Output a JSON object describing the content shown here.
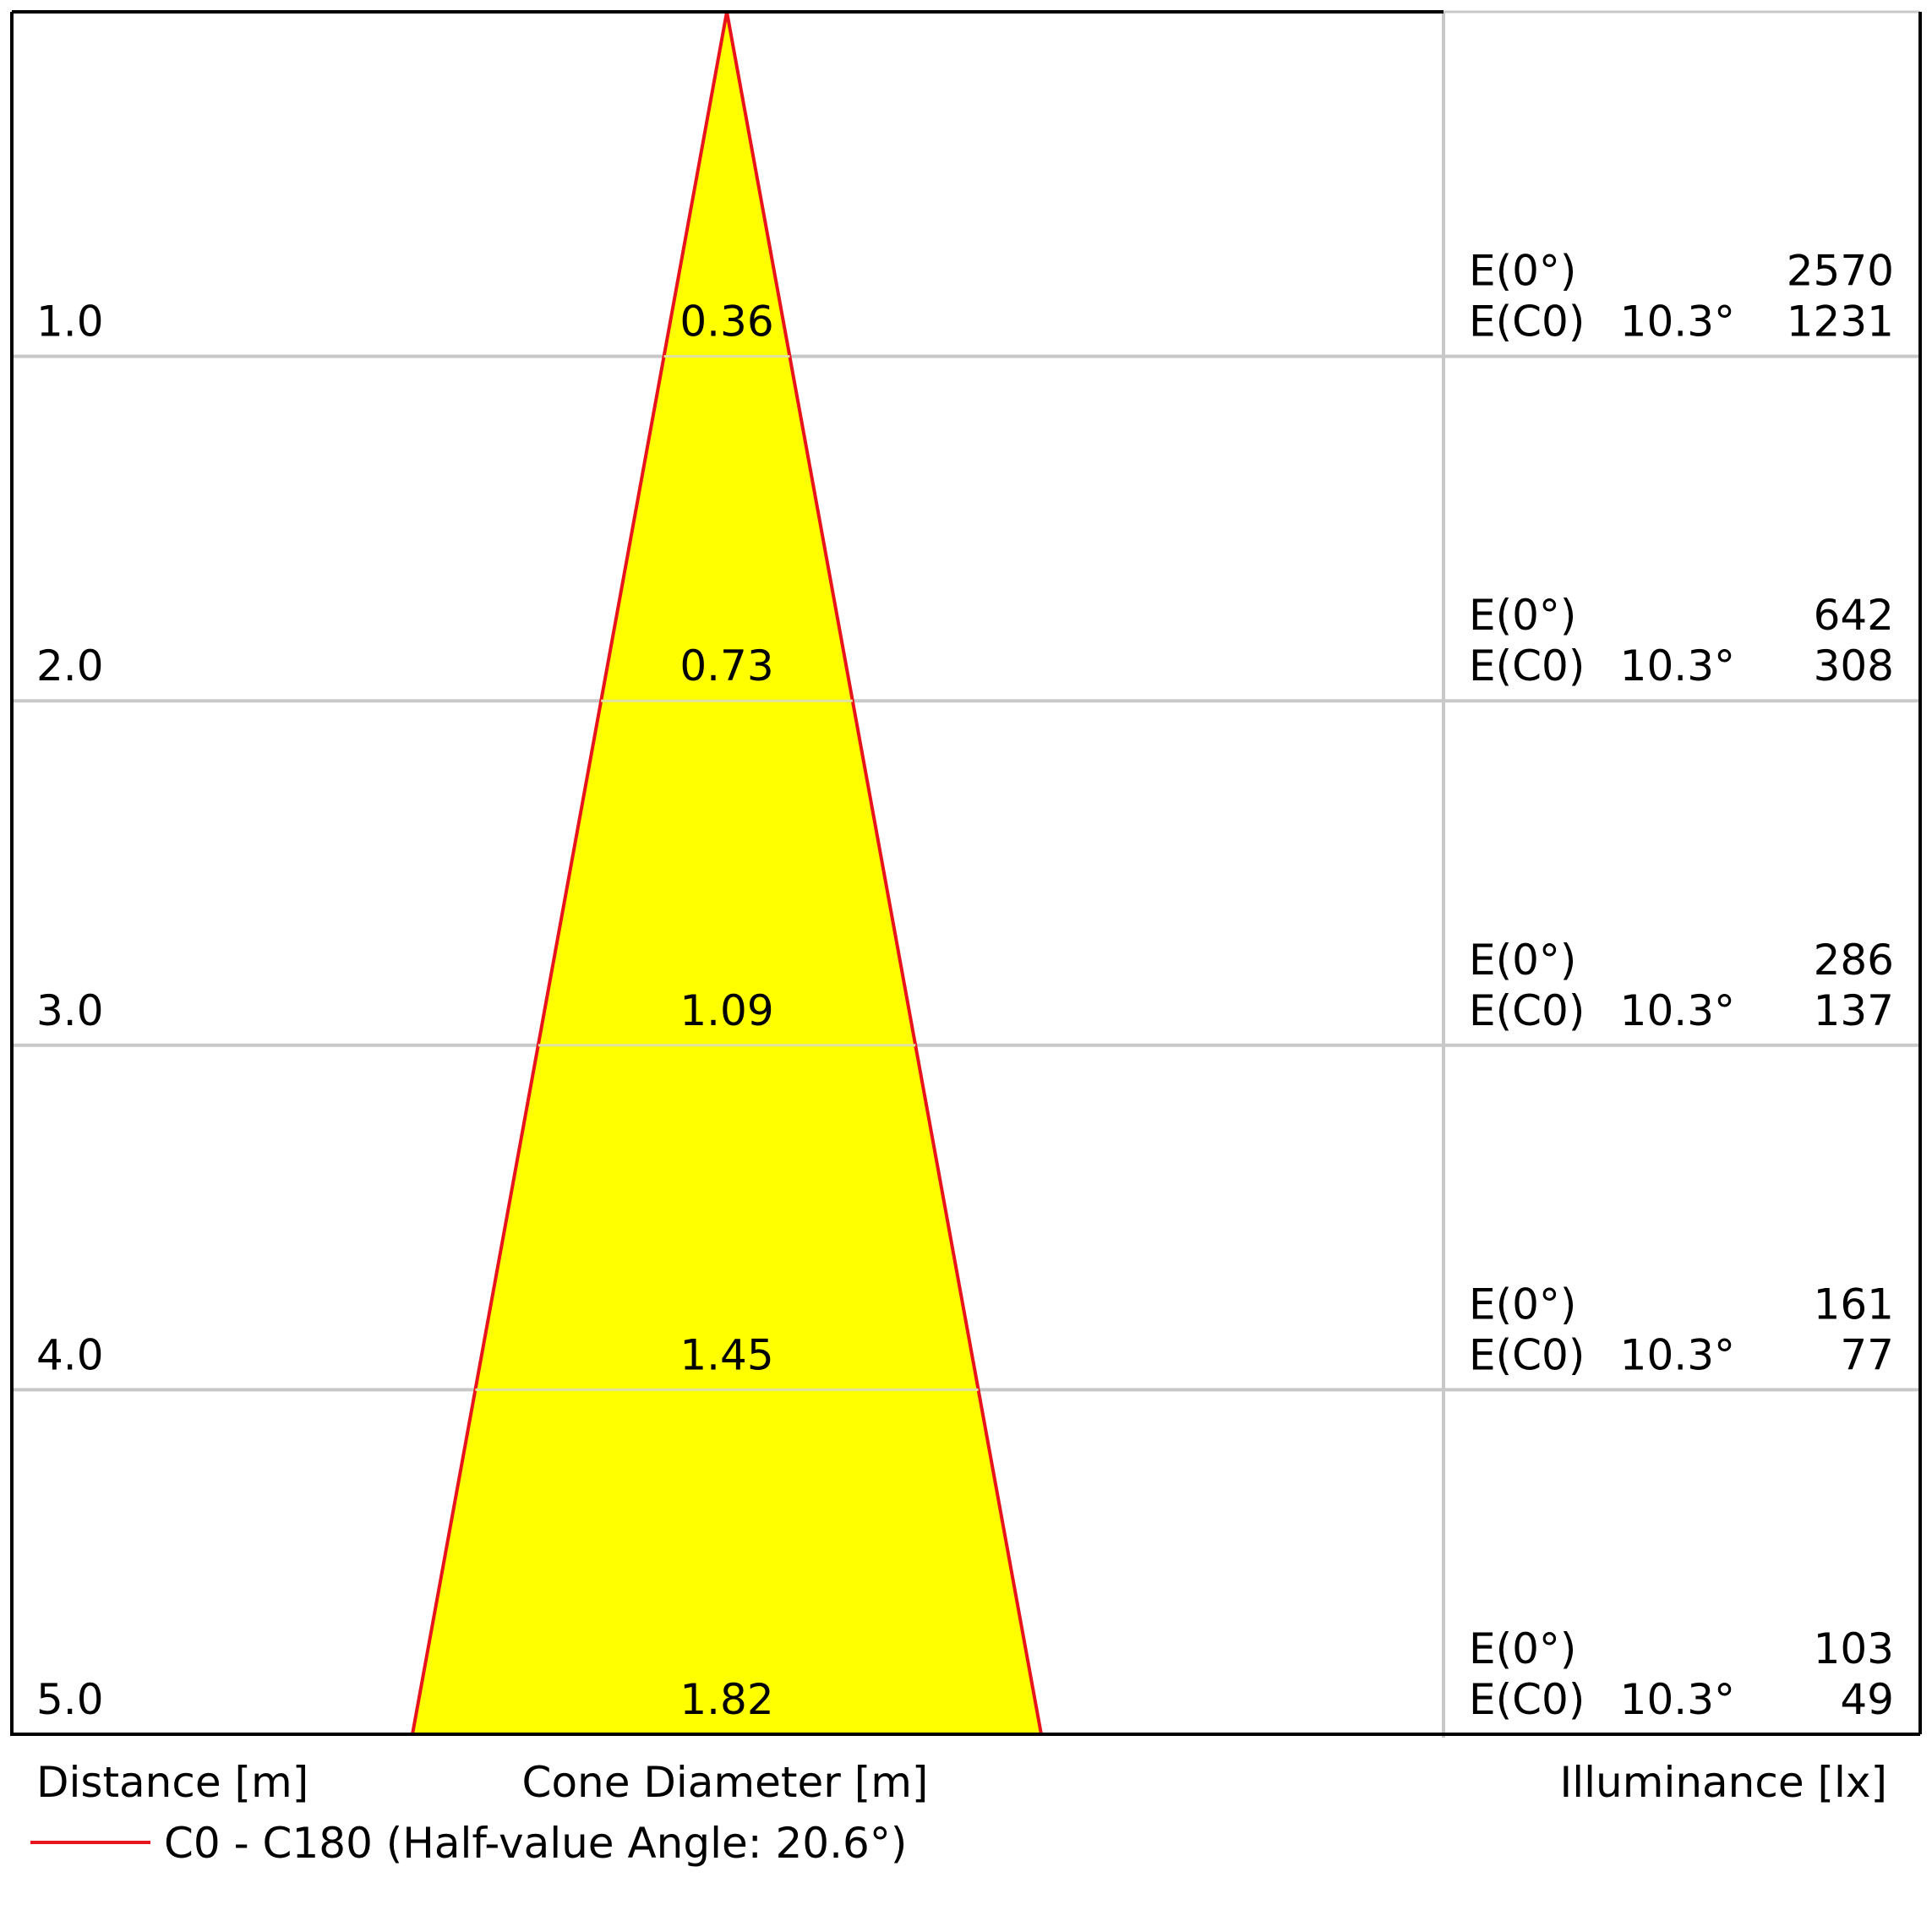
{
  "chart_data": {
    "type": "cone-diagram",
    "title": "",
    "distances": [
      1.0,
      2.0,
      3.0,
      4.0,
      5.0
    ],
    "distance_labels": [
      "1.0",
      "2.0",
      "3.0",
      "4.0",
      "5.0"
    ],
    "cone_diameters": [
      0.36,
      0.73,
      1.09,
      1.45,
      1.82
    ],
    "cone_diameter_labels": [
      "0.36",
      "0.73",
      "1.09",
      "1.45",
      "1.82"
    ],
    "illuminance": [
      {
        "e0_label": "E(0°)",
        "e0": "2570",
        "ec_label": "E(C0)",
        "angle": "10.3°",
        "ec": "1231"
      },
      {
        "e0_label": "E(0°)",
        "e0": "642",
        "ec_label": "E(C0)",
        "angle": "10.3°",
        "ec": "308"
      },
      {
        "e0_label": "E(0°)",
        "e0": "286",
        "ec_label": "E(C0)",
        "angle": "10.3°",
        "ec": "137"
      },
      {
        "e0_label": "E(0°)",
        "e0": "161",
        "ec_label": "E(C0)",
        "angle": "10.3°",
        "ec": "77"
      },
      {
        "e0_label": "E(0°)",
        "e0": "103",
        "ec_label": "E(C0)",
        "angle": "10.3°",
        "ec": "49"
      }
    ],
    "xlabel_distance": "Distance [m]",
    "xlabel_diameter": "Cone Diameter [m]",
    "xlabel_illuminance": "Illuminance [lx]",
    "legend": {
      "label": "C0 - C180 (Half-value Angle: 20.6°)",
      "color": "#e8141b",
      "placement": "bottom-left"
    },
    "colors": {
      "cone_fill": "#ffff00",
      "cone_stroke": "#e8141b",
      "grid": "#c8c8c8",
      "frame": "#000000"
    }
  }
}
